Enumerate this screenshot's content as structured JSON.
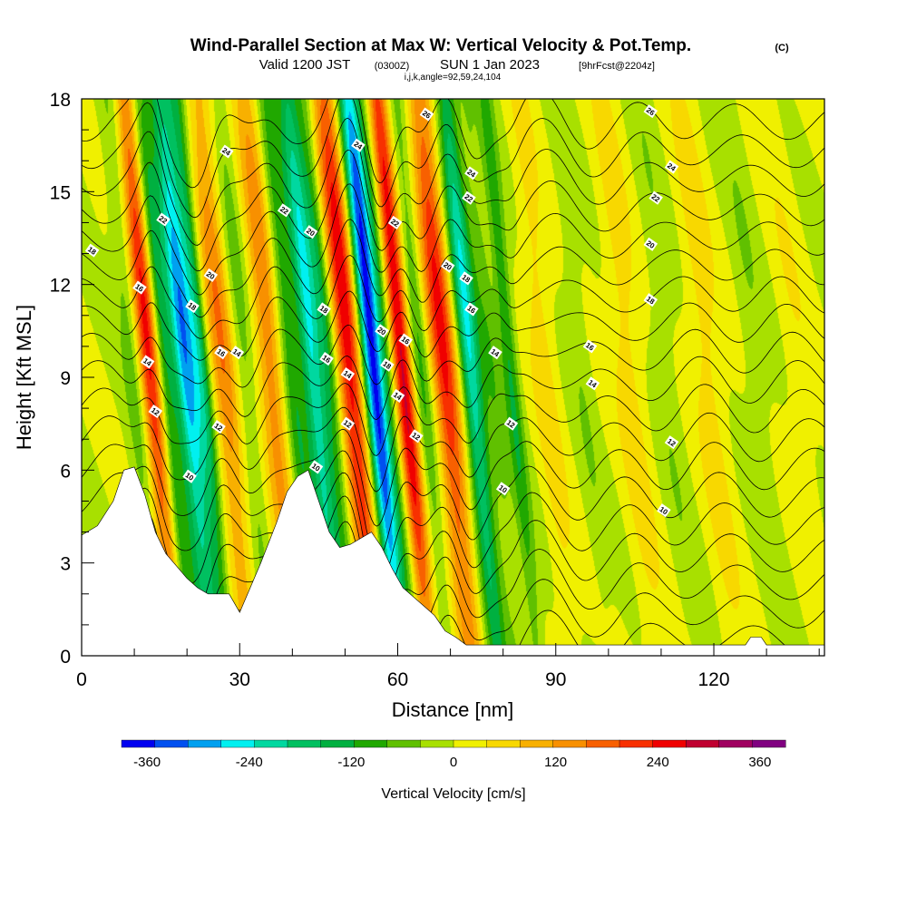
{
  "header": {
    "title_main": "Wind-Parallel Section at Max W: Vertical Velocity & Pot.Temp.",
    "title_mark": "(C)",
    "line2_a": "Valid 1200 JST",
    "line2_b": "(0300Z)",
    "line2_c": "SUN 1 Jan 2023",
    "line2_d": "[9hrFcst@2204z]",
    "line3": "i,j,k,angle=92,59,24,104"
  },
  "chart_data": {
    "type": "heatmap",
    "xlabel": "Distance [nm]",
    "ylabel": "Height [Kft MSL]",
    "xlim": [
      0,
      141
    ],
    "ylim": [
      0,
      18
    ],
    "x_ticks": [
      0,
      30,
      60,
      90,
      120
    ],
    "y_ticks": [
      0,
      3,
      6,
      9,
      12,
      15,
      18
    ],
    "grid": false,
    "colorbar": {
      "label": "Vertical Velocity [cm/s]",
      "placement": "bottom",
      "tick_labels": [
        "-360",
        "-240",
        "-120",
        "0",
        "120",
        "240",
        "360"
      ],
      "tick_values": [
        -360,
        -240,
        -120,
        0,
        120,
        240,
        360
      ],
      "range": [
        -390,
        390
      ],
      "colors": [
        "#0000f0",
        "#0050f0",
        "#00a0f0",
        "#00f0f0",
        "#00d8a0",
        "#00c060",
        "#00b040",
        "#20a800",
        "#60c000",
        "#a8e000",
        "#f0f000",
        "#f8d800",
        "#f8b000",
        "#f89000",
        "#f86000",
        "#f83000",
        "#f00000",
        "#c00030",
        "#a00060",
        "#800080"
      ]
    },
    "w_features": [
      {
        "x": 10,
        "w": 2,
        "v": -60
      },
      {
        "x": 13,
        "w": 2,
        "v": 240
      },
      {
        "x": 16,
        "w": 1.5,
        "v": -120
      },
      {
        "x": 20,
        "w": 2.5,
        "v": -300
      },
      {
        "x": 23,
        "w": 1.5,
        "v": -120
      },
      {
        "x": 27,
        "w": 2.5,
        "v": 150
      },
      {
        "x": 31,
        "w": 2,
        "v": -60
      },
      {
        "x": 36,
        "w": 2.5,
        "v": 150
      },
      {
        "x": 40,
        "w": 2,
        "v": -120
      },
      {
        "x": 44,
        "w": 2,
        "v": -240
      },
      {
        "x": 47,
        "w": 1.8,
        "v": -120
      },
      {
        "x": 51,
        "w": 2.5,
        "v": 270
      },
      {
        "x": 55.5,
        "w": 2,
        "v": -390
      },
      {
        "x": 58.5,
        "w": 1.8,
        "v": -90
      },
      {
        "x": 61,
        "w": 2,
        "v": 300
      },
      {
        "x": 64.5,
        "w": 1.8,
        "v": -90
      },
      {
        "x": 69,
        "w": 2.5,
        "v": 240
      },
      {
        "x": 74,
        "w": 2,
        "v": -240
      },
      {
        "x": 78,
        "w": 1.8,
        "v": -60
      },
      {
        "x": 81.5,
        "w": 1.5,
        "v": -120
      },
      {
        "x": 88,
        "w": 2.5,
        "v": 60
      },
      {
        "x": 95,
        "w": 2,
        "v": -30
      },
      {
        "x": 104,
        "w": 3,
        "v": 60
      },
      {
        "x": 111,
        "w": 2.5,
        "v": -30
      },
      {
        "x": 119,
        "w": 3,
        "v": 60
      },
      {
        "x": 128,
        "w": 2.5,
        "v": -30
      },
      {
        "x": 136,
        "w": 3,
        "v": 30
      }
    ],
    "terrain": [
      [
        0,
        3.9
      ],
      [
        3,
        4.2
      ],
      [
        6,
        5.0
      ],
      [
        8,
        6.0
      ],
      [
        10,
        6.1
      ],
      [
        12,
        5.2
      ],
      [
        14,
        4.0
      ],
      [
        16,
        3.3
      ],
      [
        18,
        2.9
      ],
      [
        20,
        2.5
      ],
      [
        22,
        2.2
      ],
      [
        24,
        2.0
      ],
      [
        28,
        2.0
      ],
      [
        30,
        1.4
      ],
      [
        32,
        2.2
      ],
      [
        34,
        3.0
      ],
      [
        37,
        4.3
      ],
      [
        39,
        5.3
      ],
      [
        41,
        5.8
      ],
      [
        43,
        6.0
      ],
      [
        45,
        5.0
      ],
      [
        47,
        4.0
      ],
      [
        49,
        3.5
      ],
      [
        51,
        3.6
      ],
      [
        53,
        3.8
      ],
      [
        55,
        4.0
      ],
      [
        57,
        3.5
      ],
      [
        59,
        2.8
      ],
      [
        61,
        2.2
      ],
      [
        63,
        1.9
      ],
      [
        65,
        1.6
      ],
      [
        67,
        1.3
      ],
      [
        69,
        0.8
      ],
      [
        71,
        0.6
      ],
      [
        73,
        0.35
      ],
      [
        80,
        0.35
      ],
      [
        100,
        0.35
      ],
      [
        126,
        0.35
      ],
      [
        127,
        0.6
      ],
      [
        129,
        0.6
      ],
      [
        130,
        0.35
      ],
      [
        141,
        0.35
      ]
    ],
    "theta_levels": [
      10,
      12,
      14,
      16,
      18,
      20,
      22,
      24,
      26
    ],
    "contour_labels": [
      {
        "x": 2,
        "y": 13.1,
        "text": "18"
      },
      {
        "x": 11,
        "y": 11.9,
        "text": "16"
      },
      {
        "x": 12.5,
        "y": 9.5,
        "text": "14"
      },
      {
        "x": 14,
        "y": 7.9,
        "text": "12"
      },
      {
        "x": 20.5,
        "y": 5.8,
        "text": "10"
      },
      {
        "x": 15.5,
        "y": 14.1,
        "text": "22"
      },
      {
        "x": 21,
        "y": 11.3,
        "text": "18"
      },
      {
        "x": 24.5,
        "y": 12.3,
        "text": "20"
      },
      {
        "x": 26.5,
        "y": 9.8,
        "text": "16"
      },
      {
        "x": 29.5,
        "y": 9.8,
        "text": "14"
      },
      {
        "x": 26,
        "y": 7.4,
        "text": "12"
      },
      {
        "x": 27.5,
        "y": 16.3,
        "text": "24"
      },
      {
        "x": 38.5,
        "y": 14.4,
        "text": "22"
      },
      {
        "x": 43.5,
        "y": 13.7,
        "text": "20"
      },
      {
        "x": 46,
        "y": 11.2,
        "text": "18"
      },
      {
        "x": 46.5,
        "y": 9.6,
        "text": "16"
      },
      {
        "x": 50.5,
        "y": 9.1,
        "text": "14"
      },
      {
        "x": 50.5,
        "y": 7.5,
        "text": "12"
      },
      {
        "x": 44.5,
        "y": 6.1,
        "text": "10"
      },
      {
        "x": 52.5,
        "y": 16.5,
        "text": "24"
      },
      {
        "x": 59.5,
        "y": 14.0,
        "text": "22"
      },
      {
        "x": 57,
        "y": 10.5,
        "text": "20"
      },
      {
        "x": 61.5,
        "y": 10.2,
        "text": "16"
      },
      {
        "x": 58,
        "y": 9.4,
        "text": "18"
      },
      {
        "x": 60,
        "y": 8.4,
        "text": "14"
      },
      {
        "x": 63.5,
        "y": 7.1,
        "text": "12"
      },
      {
        "x": 65.5,
        "y": 17.5,
        "text": "26"
      },
      {
        "x": 74,
        "y": 15.6,
        "text": "24"
      },
      {
        "x": 73.5,
        "y": 14.8,
        "text": "22"
      },
      {
        "x": 69.5,
        "y": 12.6,
        "text": "20"
      },
      {
        "x": 73,
        "y": 12.2,
        "text": "18"
      },
      {
        "x": 74,
        "y": 11.2,
        "text": "16"
      },
      {
        "x": 78.5,
        "y": 9.8,
        "text": "14"
      },
      {
        "x": 81.5,
        "y": 7.5,
        "text": "12"
      },
      {
        "x": 80,
        "y": 5.4,
        "text": "10"
      },
      {
        "x": 108,
        "y": 17.6,
        "text": "26"
      },
      {
        "x": 112,
        "y": 15.8,
        "text": "24"
      },
      {
        "x": 109,
        "y": 14.8,
        "text": "22"
      },
      {
        "x": 108,
        "y": 13.3,
        "text": "20"
      },
      {
        "x": 108,
        "y": 11.5,
        "text": "18"
      },
      {
        "x": 96.5,
        "y": 10.0,
        "text": "16"
      },
      {
        "x": 97,
        "y": 8.8,
        "text": "14"
      },
      {
        "x": 112,
        "y": 6.9,
        "text": "12"
      },
      {
        "x": 110.5,
        "y": 4.7,
        "text": "10"
      }
    ]
  }
}
